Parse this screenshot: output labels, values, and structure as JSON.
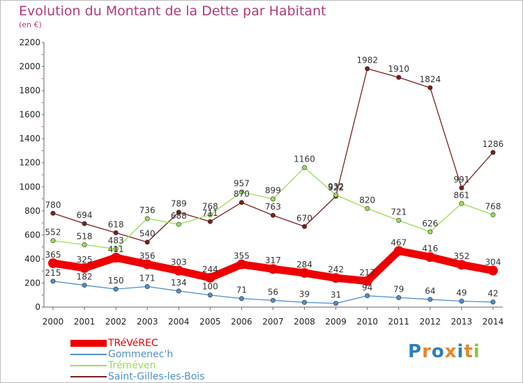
{
  "title": "Evolution du Montant de la Dette par Habitant",
  "unit_label": "(en €)",
  "logo": "Proxiti",
  "chart_data": {
    "type": "line",
    "x": [
      "2000",
      "2001",
      "2002",
      "2003",
      "2004",
      "2005",
      "2006",
      "2007",
      "2008",
      "2009",
      "2010",
      "2011",
      "2012",
      "2013",
      "2014"
    ],
    "ylim": [
      0,
      2200
    ],
    "yticks": [
      0,
      200,
      400,
      600,
      800,
      1000,
      1200,
      1400,
      1600,
      1800,
      2000,
      2200
    ],
    "grid": false,
    "legend_placement": "bottom-left",
    "series": [
      {
        "name": "TRéVéREC",
        "color": "#ee0000",
        "values": [
          365,
          325,
          411,
          356,
          303,
          244,
          355,
          317,
          284,
          242,
          217,
          467,
          416,
          352,
          304
        ]
      },
      {
        "name": "Gommenec'h",
        "color": "#4f8ec9",
        "values": [
          215,
          182,
          150,
          171,
          134,
          100,
          71,
          56,
          39,
          31,
          94,
          79,
          64,
          49,
          42
        ]
      },
      {
        "name": "Tréméven",
        "color": "#99dd55",
        "values": [
          552,
          518,
          483,
          736,
          688,
          768,
          957,
          899,
          1160,
          932,
          820,
          721,
          626,
          861,
          768
        ]
      },
      {
        "name": "Saint-Gilles-les-Bois",
        "color": "#7a1e1e",
        "values": [
          780,
          694,
          618,
          540,
          789,
          711,
          870,
          763,
          670,
          922,
          1982,
          1910,
          1824,
          991,
          1286
        ]
      }
    ]
  }
}
